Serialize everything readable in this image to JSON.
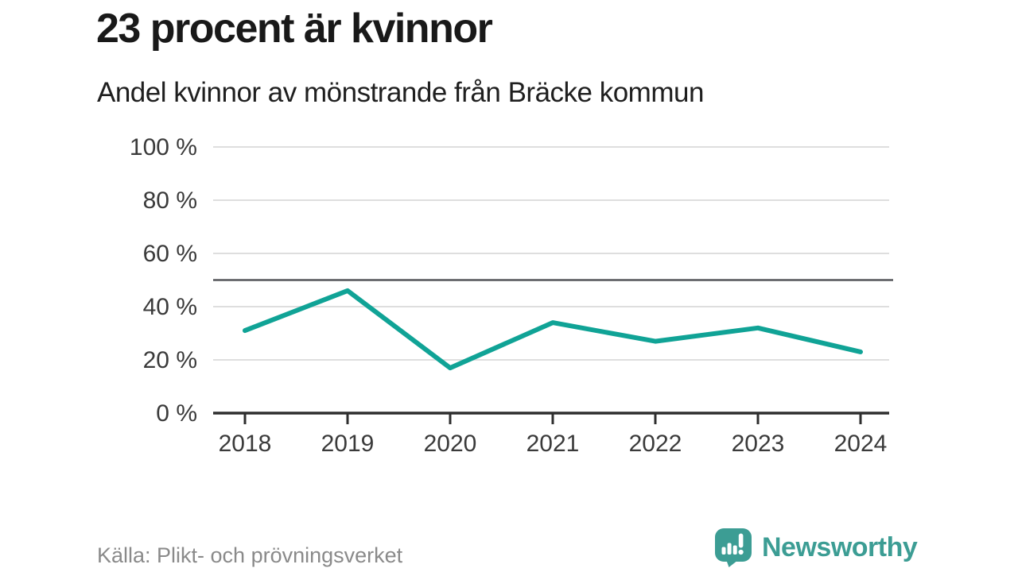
{
  "header": {
    "title": "23 procent är kvinnor",
    "subtitle": "Andel kvinnor av mönstrande från Bräcke kommun"
  },
  "footer": {
    "source": "Källa: Plikt- och prövningsverket",
    "brand": "Newsworthy"
  },
  "colors": {
    "line": "#10A396",
    "brand_teal": "#3C9D94",
    "reference_line": "#55565A",
    "grid_line": "#DEDEDE",
    "axis": "#2E2E2E",
    "tick_label": "#3A3A3A"
  },
  "chart_data": {
    "type": "line",
    "title": "23 procent är kvinnor",
    "subtitle": "Andel kvinnor av mönstrande från Bräcke kommun",
    "x": [
      2018,
      2019,
      2020,
      2021,
      2022,
      2023,
      2024
    ],
    "series": [
      {
        "name": "Andel kvinnor av mönstrande (%)",
        "values": [
          31,
          46,
          17,
          34,
          27,
          32,
          23
        ]
      }
    ],
    "xlabel": "",
    "ylabel": "",
    "ylim": [
      0,
      100
    ],
    "yticks": [
      0,
      20,
      40,
      60,
      80,
      100
    ],
    "ytick_suffix": " %",
    "reference_line_value": 50,
    "grid": "horizontal",
    "legend": "none",
    "source": "Källa: Plikt- och prövningsverket"
  }
}
